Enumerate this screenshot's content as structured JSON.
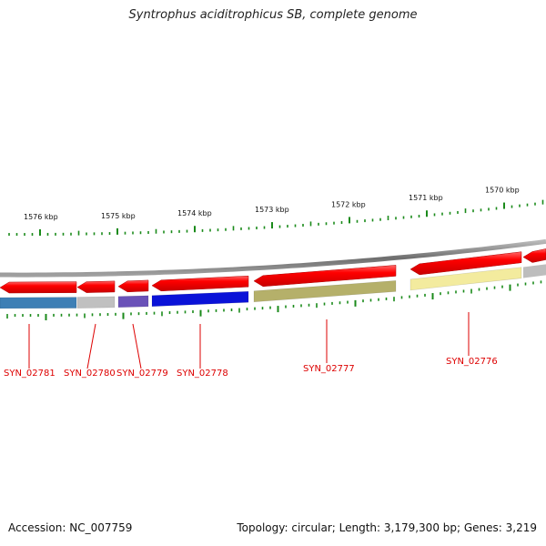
{
  "title": "Syntrophus aciditrophicus SB, complete genome",
  "footer": {
    "accession": "Accession: NC_007759",
    "summary": "Topology: circular; Length: 3,179,300 bp; Genes: 3,219"
  },
  "scale_labels": [
    "1576 kbp",
    "1575 kbp",
    "1574 kbp",
    "1573 kbp",
    "1572 kbp",
    "1571 kbp",
    "1570 kbp"
  ],
  "genes": [
    {
      "label": "SYN_02781",
      "color": "#3d7fb5"
    },
    {
      "label": "SYN_02780",
      "color": "#c0c0c0"
    },
    {
      "label": "SYN_02779",
      "color": "#6a52b8"
    },
    {
      "label": "SYN_02778",
      "color": "#0a12d8"
    },
    {
      "label": "SYN_02777",
      "color": "#b5b06a"
    },
    {
      "label": "SYN_02776",
      "color": "#f3eb9e"
    }
  ],
  "colors": {
    "cds": "#ff0000",
    "backbone": "#8a8a8a",
    "tick": "#1a8a1a",
    "label": "#dd0000"
  }
}
